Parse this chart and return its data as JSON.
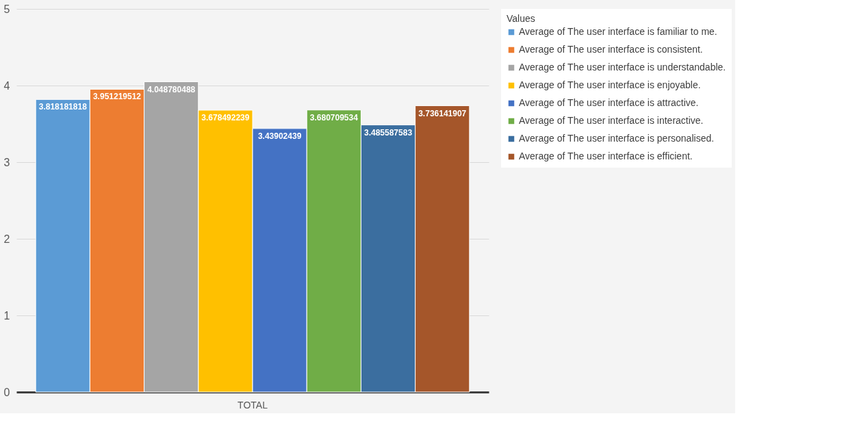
{
  "chart_data": {
    "type": "bar",
    "categories": [
      "TOTAL"
    ],
    "series": [
      {
        "name": "Average of The user interface is familiar to me.",
        "color": "#5b9bd5",
        "values": [
          3.818181818
        ]
      },
      {
        "name": "Average of The user interface is consistent.",
        "color": "#ed7d31",
        "values": [
          3.951219512
        ]
      },
      {
        "name": "Average of The user interface is understandable.",
        "color": "#a5a5a5",
        "values": [
          4.048780488
        ]
      },
      {
        "name": "Average of The user interface is enjoyable.",
        "color": "#ffc000",
        "values": [
          3.678492239
        ]
      },
      {
        "name": "Average of The user interface is attractive.",
        "color": "#4472c4",
        "values": [
          3.43902439
        ]
      },
      {
        "name": "Average of The user interface is interactive.",
        "color": "#70ad47",
        "values": [
          3.680709534
        ]
      },
      {
        "name": "Average of The user interface is personalised.",
        "color": "#3b6e9f",
        "values": [
          3.485587583
        ]
      },
      {
        "name": "Average of The user interface is efficient.",
        "color": "#a5562a",
        "values": [
          3.736141907
        ]
      }
    ],
    "ylim": [
      0,
      5
    ],
    "yticks": [
      0,
      1,
      2,
      3,
      4,
      5
    ],
    "grid": "y",
    "legend": "right",
    "legend_title": "Values",
    "data_labels": true
  }
}
